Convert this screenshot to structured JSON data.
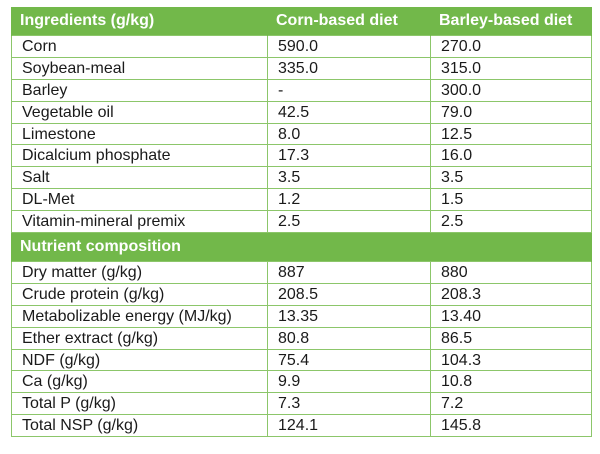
{
  "table": {
    "headers": [
      "Ingredients (g/kg)",
      "Corn-based diet",
      "Barley-based diet"
    ],
    "ingredients": [
      [
        "Corn",
        "590.0",
        "270.0"
      ],
      [
        "Soybean-meal",
        "335.0",
        "315.0"
      ],
      [
        "Barley",
        "-",
        "300.0"
      ],
      [
        "Vegetable oil",
        "42.5",
        "79.0"
      ],
      [
        "Limestone",
        "8.0",
        "12.5"
      ],
      [
        "Dicalcium phosphate",
        "17.3",
        "16.0"
      ],
      [
        "Salt",
        "3.5",
        "3.5"
      ],
      [
        "DL-Met",
        "1.2",
        "1.5"
      ],
      [
        "Vitamin-mineral premix",
        "2.5",
        "2.5"
      ]
    ],
    "section_title": "Nutrient composition",
    "nutrients": [
      [
        "Dry matter (g/kg)",
        "887",
        "880"
      ],
      [
        "Crude protein (g/kg)",
        "208.5",
        "208.3"
      ],
      [
        "Metabolizable energy (MJ/kg)",
        "13.35",
        "13.40"
      ],
      [
        "Ether extract (g/kg)",
        "80.8",
        "86.5"
      ],
      [
        "NDF (g/kg)",
        "75.4",
        "104.3"
      ],
      [
        "Ca (g/kg)",
        "9.9",
        "10.8"
      ],
      [
        "Total P (g/kg)",
        "7.3",
        "7.2"
      ],
      [
        "Total NSP (g/kg)",
        "124.1",
        "145.8"
      ]
    ]
  },
  "colors": {
    "header_bg": "#72b84a",
    "header_text": "#ffffff",
    "grid_line": "#8cc66a",
    "cell_text": "#1a1a1a"
  }
}
